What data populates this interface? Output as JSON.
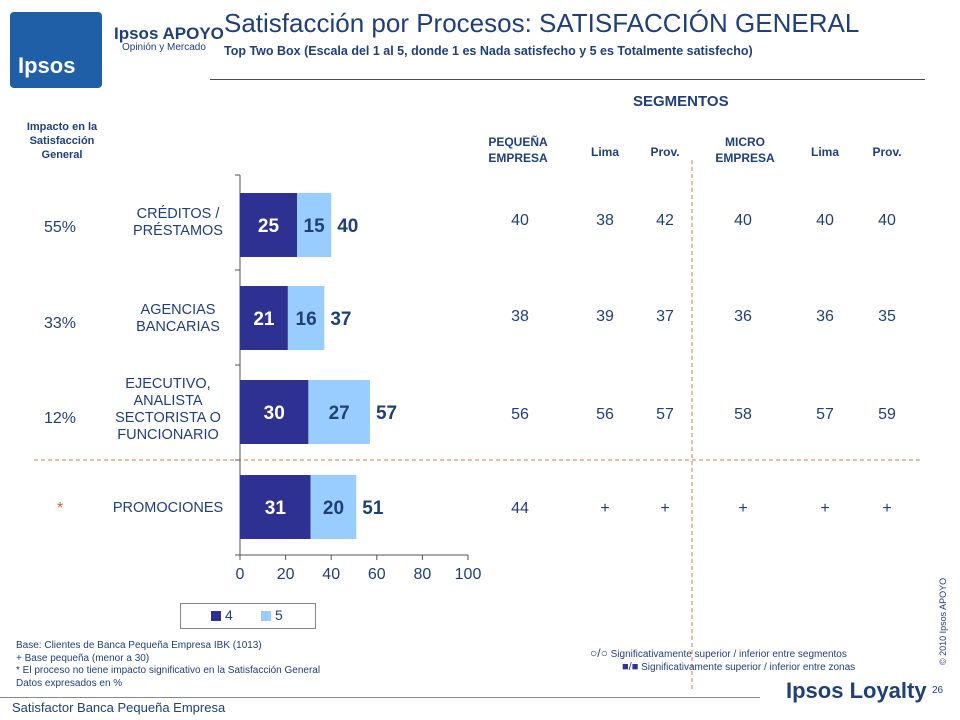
{
  "header": {
    "logo_text": "Ipsos",
    "brand_name": "Ipsos APOYO",
    "brand_tagline": "Opinión y Mercado",
    "title": "Satisfacción por Procesos: SATISFACCIÓN GENERAL",
    "subtitle": "Top Two Box (Escala del 1 al 5, donde 1 es Nada satisfecho y 5 es Totalmente satisfecho)"
  },
  "impact": {
    "header_lines": [
      "Impacto en la",
      "Satisfacción",
      "General"
    ],
    "values": [
      "55%",
      "33%",
      "12%",
      "*"
    ]
  },
  "chart_data": {
    "type": "bar",
    "orientation": "horizontal",
    "stacked": true,
    "categories": [
      [
        "CRÉDITOS /",
        "PRÉSTAMOS"
      ],
      [
        "AGENCIAS",
        "BANCARIAS"
      ],
      [
        "EJECUTIVO,",
        "ANALISTA",
        "SECTORISTA O",
        "FUNCIONARIO"
      ],
      [
        "PROMOCIONES"
      ]
    ],
    "series": [
      {
        "name": "4",
        "values": [
          25,
          21,
          30,
          31
        ],
        "color": "#2e3192"
      },
      {
        "name": "5",
        "values": [
          15,
          16,
          27,
          20
        ],
        "color": "#99ccff"
      }
    ],
    "totals": [
      40,
      37,
      57,
      51
    ],
    "xlim": [
      0,
      100
    ],
    "xticks": [
      "0",
      "20",
      "40",
      "60",
      "80",
      "100"
    ],
    "legend_position": "bottom"
  },
  "segments": {
    "title": "SEGMENTOS",
    "columns": [
      [
        "PEQUEÑA",
        "EMPRESA"
      ],
      [
        "Lima"
      ],
      [
        "Prov."
      ],
      [
        "MICRO",
        "EMPRESA"
      ],
      [
        "Lima"
      ],
      [
        "Prov."
      ]
    ],
    "rows": [
      [
        "40",
        "38",
        "42",
        "40",
        "40",
        "40"
      ],
      [
        "38",
        "39",
        "37",
        "36",
        "36",
        "35"
      ],
      [
        "56",
        "56",
        "57",
        "58",
        "57",
        "59"
      ],
      [
        "44",
        "+",
        "+",
        "+",
        "+",
        "+"
      ]
    ]
  },
  "notes": [
    "Base: Clientes de Banca Pequeña Empresa IBK (1013)",
    "+ Base pequeña (menor a 30)",
    "* El proceso no tiene impacto significativo en la Satisfacción General",
    "Datos expresados en %"
  ],
  "significance_legend": [
    {
      "symbol": "○/○",
      "text": "Significativamente superior / inferior entre segmentos"
    },
    {
      "symbol": "■/■",
      "text": "Significativamente superior / inferior entre zonas"
    }
  ],
  "footer": {
    "left_text": "Satisfactor Banca Pequeña Empresa",
    "brand": "Ipsos Loyalty",
    "page": "26",
    "copyright": "© 2010 Ipsos APOYO"
  }
}
